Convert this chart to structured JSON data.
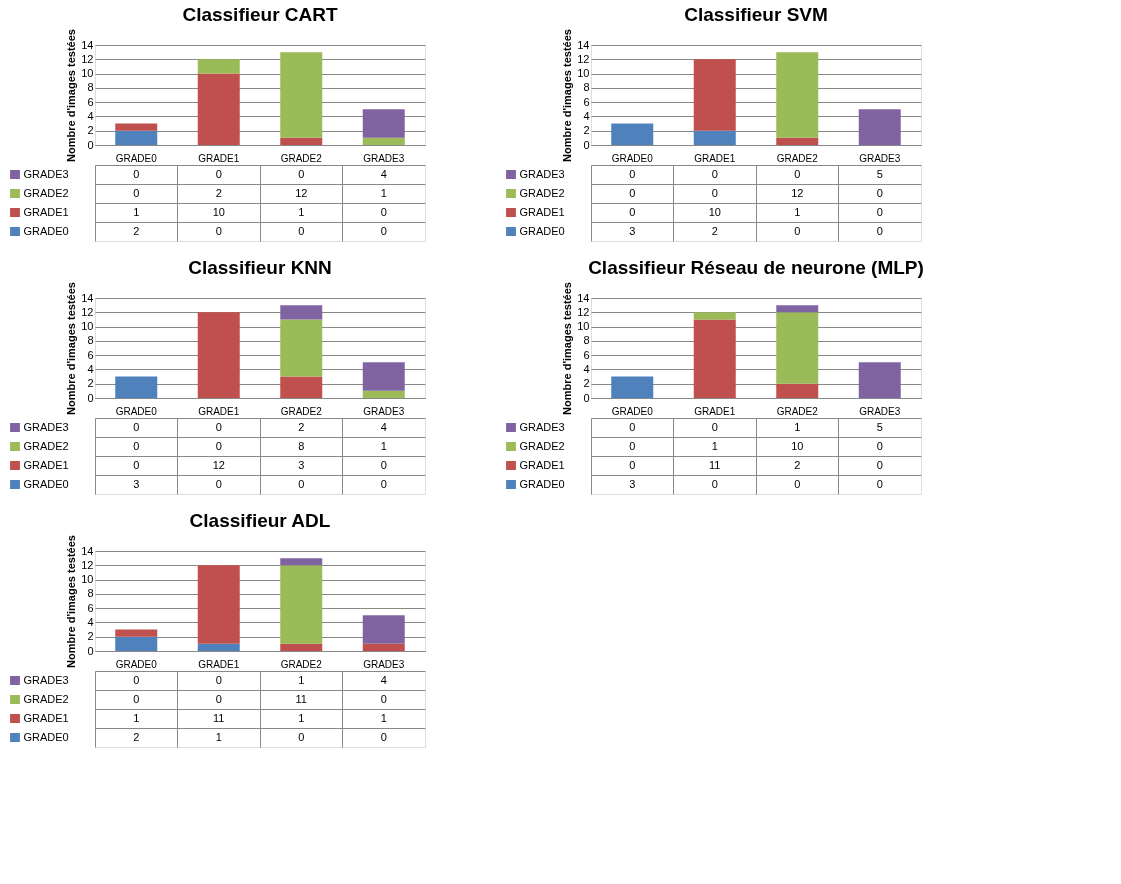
{
  "chart_data": [
    {
      "type": "bar",
      "title": "Classifieur CART",
      "legend": "bottom left",
      "ylabel": "Nombre d'images testées",
      "categories": [
        "GRADE0",
        "GRADE1",
        "GRADE2",
        "GRADE3"
      ],
      "stacked": true,
      "ylim": [
        0,
        14
      ],
      "yticks": [
        0,
        2,
        4,
        6,
        8,
        10,
        12,
        14
      ],
      "grid": "y",
      "data_labels": true,
      "series": [
        {
          "name": "GRADE0",
          "color": "#4f81bd",
          "values": [
            2,
            0,
            0,
            0
          ]
        },
        {
          "name": "GRADE1",
          "color": "#c0504d",
          "values": [
            1,
            10,
            1,
            0
          ]
        },
        {
          "name": "GRADE2",
          "color": "#9bbb59",
          "values": [
            0,
            2,
            12,
            1
          ]
        },
        {
          "name": "GRADE3",
          "color": "#8064a2",
          "values": [
            0,
            0,
            0,
            4
          ]
        }
      ]
    },
    {
      "type": "bar",
      "title": "Classifieur SVM",
      "legend": "bottom left",
      "ylabel": "Nombre d'images testées",
      "categories": [
        "GRADE0",
        "GRADE1",
        "GRADE2",
        "GRADE3"
      ],
      "stacked": true,
      "ylim": [
        0,
        14
      ],
      "yticks": [
        0,
        2,
        4,
        6,
        8,
        10,
        12,
        14
      ],
      "grid": "y",
      "data_labels": true,
      "series": [
        {
          "name": "GRADE0",
          "color": "#4f81bd",
          "values": [
            3,
            2,
            0,
            0
          ]
        },
        {
          "name": "GRADE1",
          "color": "#c0504d",
          "values": [
            0,
            10,
            1,
            0
          ]
        },
        {
          "name": "GRADE2",
          "color": "#9bbb59",
          "values": [
            0,
            0,
            12,
            0
          ]
        },
        {
          "name": "GRADE3",
          "color": "#8064a2",
          "values": [
            0,
            0,
            0,
            5
          ]
        }
      ]
    },
    {
      "type": "bar",
      "title": "Classifieur KNN",
      "legend": "bottom left",
      "ylabel": "Nombre d'images testées",
      "categories": [
        "GRADE0",
        "GRADE1",
        "GRADE2",
        "GRADE3"
      ],
      "stacked": true,
      "ylim": [
        0,
        14
      ],
      "yticks": [
        0,
        2,
        4,
        6,
        8,
        10,
        12,
        14
      ],
      "grid": "y",
      "data_labels": true,
      "series": [
        {
          "name": "GRADE0",
          "color": "#4f81bd",
          "values": [
            3,
            0,
            0,
            0
          ]
        },
        {
          "name": "GRADE1",
          "color": "#c0504d",
          "values": [
            0,
            12,
            3,
            0
          ]
        },
        {
          "name": "GRADE2",
          "color": "#9bbb59",
          "values": [
            0,
            0,
            8,
            1
          ]
        },
        {
          "name": "GRADE3",
          "color": "#8064a2",
          "values": [
            0,
            0,
            2,
            4
          ]
        }
      ]
    },
    {
      "type": "bar",
      "title": "Classifieur Réseau de neurone (MLP)",
      "legend": "bottom left",
      "ylabel": "Nombre d'images testées",
      "categories": [
        "GRADE0",
        "GRADE1",
        "GRADE2",
        "GRADE3"
      ],
      "stacked": true,
      "ylim": [
        0,
        14
      ],
      "yticks": [
        0,
        2,
        4,
        6,
        8,
        10,
        12,
        14
      ],
      "grid": "y",
      "data_labels": true,
      "series": [
        {
          "name": "GRADE0",
          "color": "#4f81bd",
          "values": [
            3,
            0,
            0,
            0
          ]
        },
        {
          "name": "GRADE1",
          "color": "#c0504d",
          "values": [
            0,
            11,
            2,
            0
          ]
        },
        {
          "name": "GRADE2",
          "color": "#9bbb59",
          "values": [
            0,
            1,
            10,
            0
          ]
        },
        {
          "name": "GRADE3",
          "color": "#8064a2",
          "values": [
            0,
            0,
            1,
            5
          ]
        }
      ]
    },
    {
      "type": "bar",
      "title": "Classifieur ADL",
      "legend": "bottom left",
      "ylabel": "Nombre d'images testées",
      "categories": [
        "GRADE0",
        "GRADE1",
        "GRADE2",
        "GRADE3"
      ],
      "stacked": true,
      "ylim": [
        0,
        14
      ],
      "yticks": [
        0,
        2,
        4,
        6,
        8,
        10,
        12,
        14
      ],
      "grid": "y",
      "data_labels": true,
      "series": [
        {
          "name": "GRADE0",
          "color": "#4f81bd",
          "values": [
            2,
            1,
            0,
            0
          ]
        },
        {
          "name": "GRADE1",
          "color": "#c0504d",
          "values": [
            1,
            11,
            1,
            1
          ]
        },
        {
          "name": "GRADE2",
          "color": "#9bbb59",
          "values": [
            0,
            0,
            11,
            0
          ]
        },
        {
          "name": "GRADE3",
          "color": "#8064a2",
          "values": [
            0,
            0,
            1,
            4
          ]
        }
      ]
    }
  ]
}
